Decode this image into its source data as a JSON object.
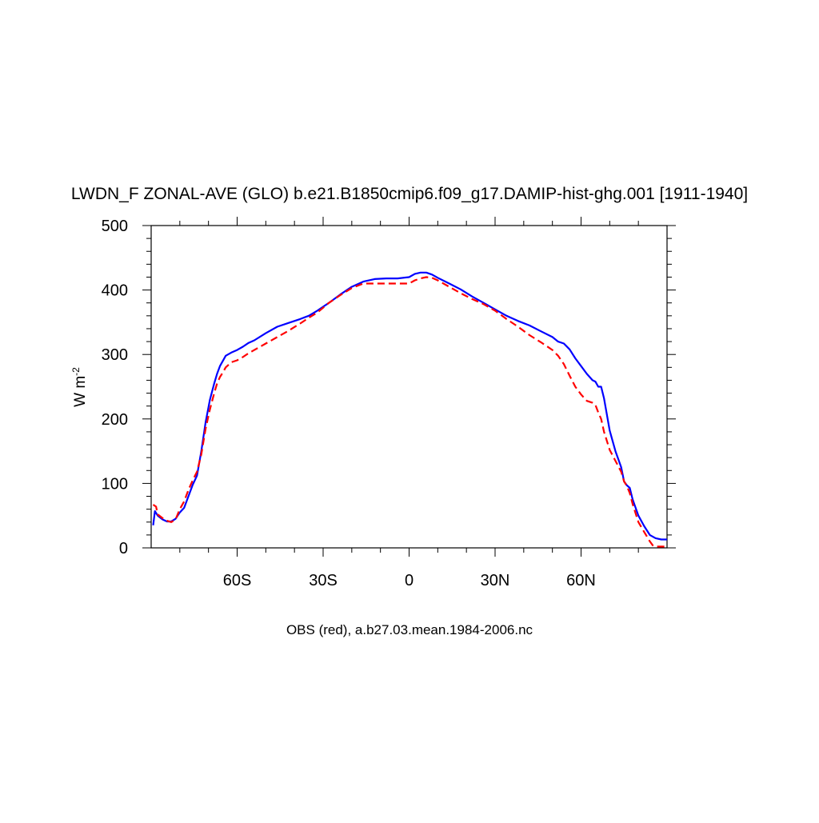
{
  "chart_data": {
    "type": "line",
    "title": "LWDN_F ZONAL-AVE (GLO) b.e21.B1850cmip6.f09_g17.DAMIP-hist-ghg.001 [1911-1940]",
    "ylabel_base": "W m",
    "ylabel_exp": "-2",
    "caption": "OBS (red), a.b27.03.mean.1984-2006.nc",
    "xlim": [
      -90,
      90
    ],
    "ylim": [
      0,
      500
    ],
    "x_ticks": [
      {
        "value": -60,
        "label": "60S"
      },
      {
        "value": -30,
        "label": "30S"
      },
      {
        "value": 0,
        "label": "0"
      },
      {
        "value": 30,
        "label": "30N"
      },
      {
        "value": 60,
        "label": "60N"
      }
    ],
    "y_ticks": [
      {
        "value": 0,
        "label": "0"
      },
      {
        "value": 100,
        "label": "100"
      },
      {
        "value": 200,
        "label": "200"
      },
      {
        "value": 300,
        "label": "300"
      },
      {
        "value": 400,
        "label": "400"
      },
      {
        "value": 500,
        "label": "500"
      }
    ],
    "series": [
      {
        "color": "#0000ff",
        "dash": "solid",
        "x": [
          -89.3,
          -88.7,
          -87.7,
          -86,
          -84.5,
          -83,
          -81.5,
          -80,
          -78.5,
          -77,
          -75.5,
          -74,
          -72.5,
          -71,
          -69.5,
          -68,
          -67,
          -66,
          -65,
          -64,
          -62,
          -60,
          -58,
          -56,
          -54,
          -50,
          -46,
          -42,
          -38,
          -35,
          -32,
          -28,
          -24,
          -20,
          -16,
          -12,
          -8,
          -4,
          0,
          2,
          4,
          6,
          8,
          10,
          14,
          18,
          22,
          26,
          30,
          34,
          38,
          42,
          46,
          50,
          52,
          54,
          56,
          58,
          60,
          62,
          64,
          65,
          66,
          67,
          68,
          70,
          72,
          74,
          75,
          76,
          77,
          78,
          80,
          82,
          84,
          86,
          88,
          90
        ],
        "y": [
          35,
          57,
          50,
          44,
          41,
          41,
          45,
          55,
          62,
          80,
          98,
          112,
          150,
          195,
          230,
          255,
          270,
          282,
          290,
          298,
          303,
          307,
          312,
          318,
          322,
          333,
          343,
          349,
          355,
          360,
          368,
          380,
          393,
          405,
          413,
          417,
          418,
          418,
          420,
          425,
          427,
          427,
          424,
          419,
          410,
          401,
          390,
          380,
          370,
          360,
          352,
          345,
          336,
          327,
          320,
          317,
          308,
          294,
          282,
          270,
          260,
          258,
          250,
          250,
          232,
          182,
          150,
          125,
          103,
          97,
          93,
          75,
          50,
          34,
          20,
          15,
          13,
          13
        ]
      },
      {
        "color": "#ff0000",
        "dash": "dashed",
        "x": [
          -89.3,
          -88.3,
          -87.7,
          -86,
          -84.5,
          -83,
          -81.5,
          -80,
          -78.5,
          -77,
          -75.5,
          -74,
          -72.5,
          -71,
          -69.5,
          -68,
          -67,
          -66,
          -65,
          -64,
          -62,
          -60,
          -58,
          -56,
          -54,
          -50,
          -46,
          -42,
          -38,
          -35,
          -32,
          -28,
          -24,
          -20,
          -16,
          -12,
          -8,
          -4,
          -2,
          0,
          2,
          4,
          6,
          8,
          10,
          14,
          18,
          22,
          26,
          30,
          34,
          38,
          42,
          46,
          50,
          52,
          54,
          56,
          58,
          60,
          62,
          64,
          65,
          66,
          67,
          68,
          70,
          72,
          74,
          75,
          76,
          77,
          78,
          80,
          82,
          84,
          85,
          86,
          88,
          90
        ],
        "y": [
          67,
          64,
          52,
          46,
          42,
          40,
          44,
          60,
          72,
          90,
          105,
          118,
          145,
          185,
          215,
          240,
          255,
          265,
          272,
          280,
          288,
          291,
          296,
          302,
          307,
          317,
          327,
          337,
          348,
          357,
          365,
          380,
          392,
          403,
          410,
          410,
          410,
          410,
          410,
          410,
          415,
          418,
          420,
          419,
          415,
          405,
          395,
          386,
          378,
          368,
          355,
          343,
          330,
          319,
          307,
          298,
          285,
          267,
          250,
          238,
          228,
          225,
          222,
          210,
          200,
          180,
          152,
          135,
          118,
          103,
          96,
          85,
          68,
          40,
          25,
          10,
          4,
          2,
          2,
          2
        ]
      }
    ]
  }
}
